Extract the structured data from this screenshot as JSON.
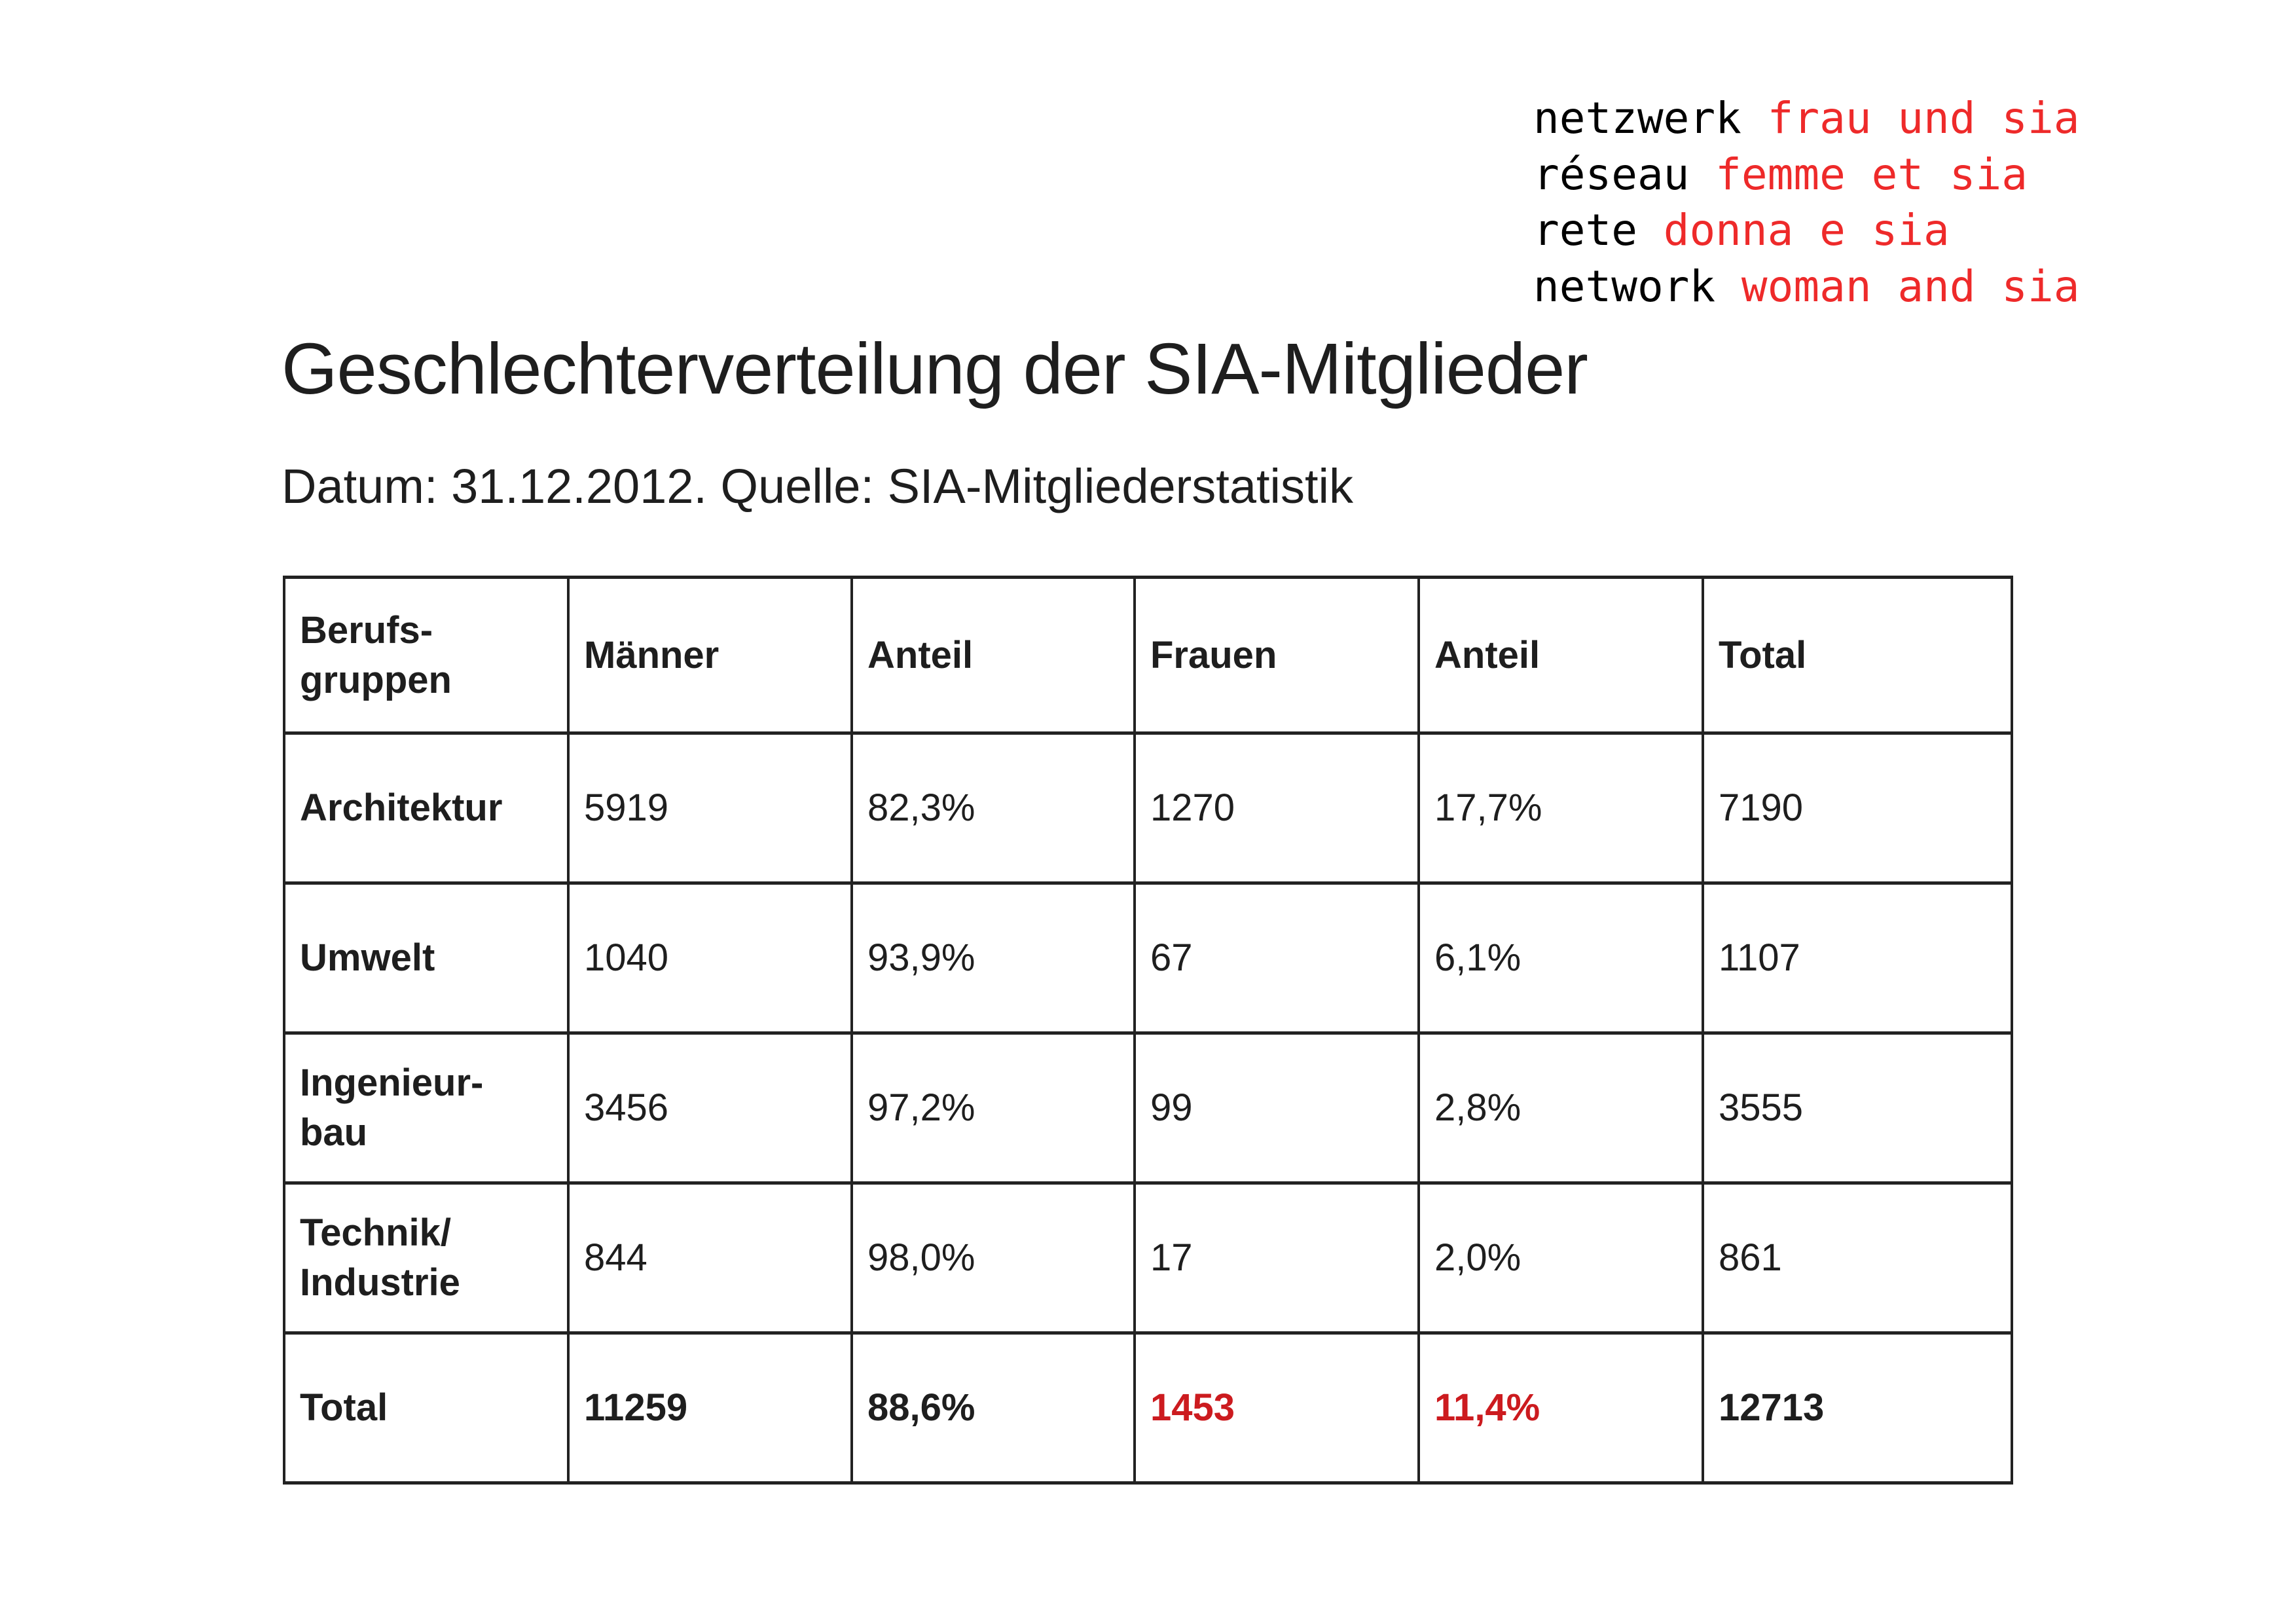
{
  "logo": {
    "lines": [
      {
        "black": "netzwerk",
        "red": "frau und sia"
      },
      {
        "black": "réseau",
        "red": "femme et sia"
      },
      {
        "black": "rete",
        "red": "donna e sia"
      },
      {
        "black": "network",
        "red": "woman and sia"
      }
    ]
  },
  "title": "Geschlechterverteilung der SIA-Mitglieder",
  "subtitle": "Datum: 31.12.2012. Quelle: SIA-Mitgliederstatistik",
  "colors": {
    "accent_red": "#cc1b1f",
    "logo_red": "#ee2a2a",
    "text": "#1e1e1e"
  },
  "table": {
    "headers": [
      "Berufs-\ngruppen",
      "Männer",
      "Anteil",
      "Frauen",
      "Anteil",
      "Total"
    ],
    "rows": [
      [
        "Architektur",
        "5919",
        "82,3%",
        "1270",
        "17,7%",
        "7190"
      ],
      [
        "Umwelt",
        "1040",
        "93,9%",
        "67",
        "6,1%",
        "1107"
      ],
      [
        "Ingenieur-\nbau",
        "3456",
        "97,2%",
        "99",
        "2,8%",
        "3555"
      ],
      [
        "Technik/\nIndustrie",
        "844",
        "98,0%",
        "17",
        "2,0%",
        "861"
      ]
    ],
    "total": [
      "Total",
      "11259",
      "88,6%",
      "1453",
      "11,4%",
      "12713"
    ]
  }
}
